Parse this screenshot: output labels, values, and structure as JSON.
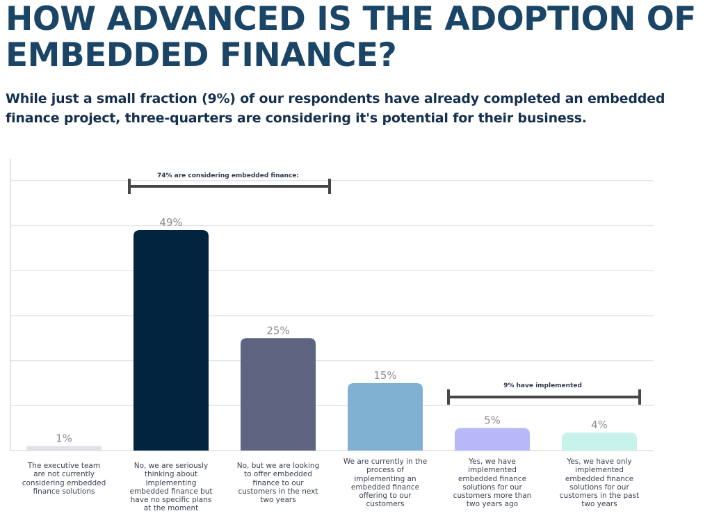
{
  "header": {
    "title": "HOW ADVANCED IS THE ADOPTION OF EMBEDDED FINANCE?",
    "subtitle": "While just a small fraction (9%) of our respondents have already completed an embedded finance project, three-quarters are considering it's potential for their business."
  },
  "chart_data": {
    "type": "bar",
    "title": "",
    "xlabel": "",
    "ylabel": "",
    "ylim": [
      0,
      60
    ],
    "grid": true,
    "grid_step": 10,
    "y_ticks_visible": false,
    "categories": [
      "The executive team are not currently considering embedded finance solutions",
      "No, we are seriously thinking about implementing embedded finance but have no specific plans at the moment",
      "No, but we are looking to offer embedded finance to our customers in the next two years",
      "We are currently in the process of implementing an embedded finance offering to our customers",
      "Yes, we have implemented embedded finance solutions for our customers more than two years ago",
      "Yes, we have only implemented embedded finance solutions for our customers in the past two years"
    ],
    "values": [
      1,
      49,
      25,
      15,
      5,
      4
    ],
    "value_labels": [
      "1%",
      "49%",
      "25%",
      "15%",
      "5%",
      "4%"
    ],
    "colors": [
      "#e0e0e6",
      "#03243f",
      "#5f6480",
      "#80b1d3",
      "#b8b8f8",
      "#c8f2ec"
    ],
    "annotations": [
      {
        "text": "74% are considering embedded finance:",
        "from_category": 1,
        "to_category": 2,
        "level": 60
      },
      {
        "text": "9% have implemented",
        "from_category": 4,
        "to_category": 5,
        "level": 12
      }
    ]
  }
}
